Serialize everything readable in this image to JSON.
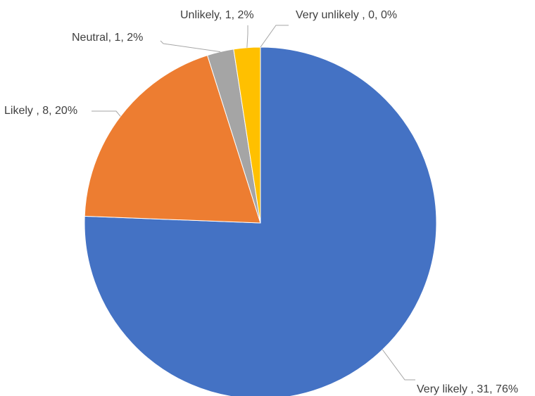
{
  "chart_data": {
    "type": "pie",
    "title": "",
    "slices": [
      {
        "label": "Very likely ",
        "count": 31,
        "percent": "76%",
        "value": 31,
        "color": "#4472c4"
      },
      {
        "label": "Likely ",
        "count": 8,
        "percent": "20%",
        "value": 8,
        "color": "#ed7d31"
      },
      {
        "label": "Neutral",
        "count": 1,
        "percent": "2%",
        "value": 1,
        "color": "#a5a5a5"
      },
      {
        "label": "Unlikely",
        "count": 1,
        "percent": "2%",
        "value": 1,
        "color": "#ffc000"
      },
      {
        "label": "Very unlikely ",
        "count": 0,
        "percent": "0%",
        "value": 0,
        "color": "#5b9bd5"
      }
    ],
    "data_labels": [
      "Very likely , 31, 76%",
      "Likely , 8, 20%",
      "Neutral, 1, 2%",
      "Unlikely, 1, 2%",
      "Very unlikely , 0, 0%"
    ],
    "legend": "none",
    "start_angle": "12 o'clock",
    "direction": "clockwise"
  }
}
